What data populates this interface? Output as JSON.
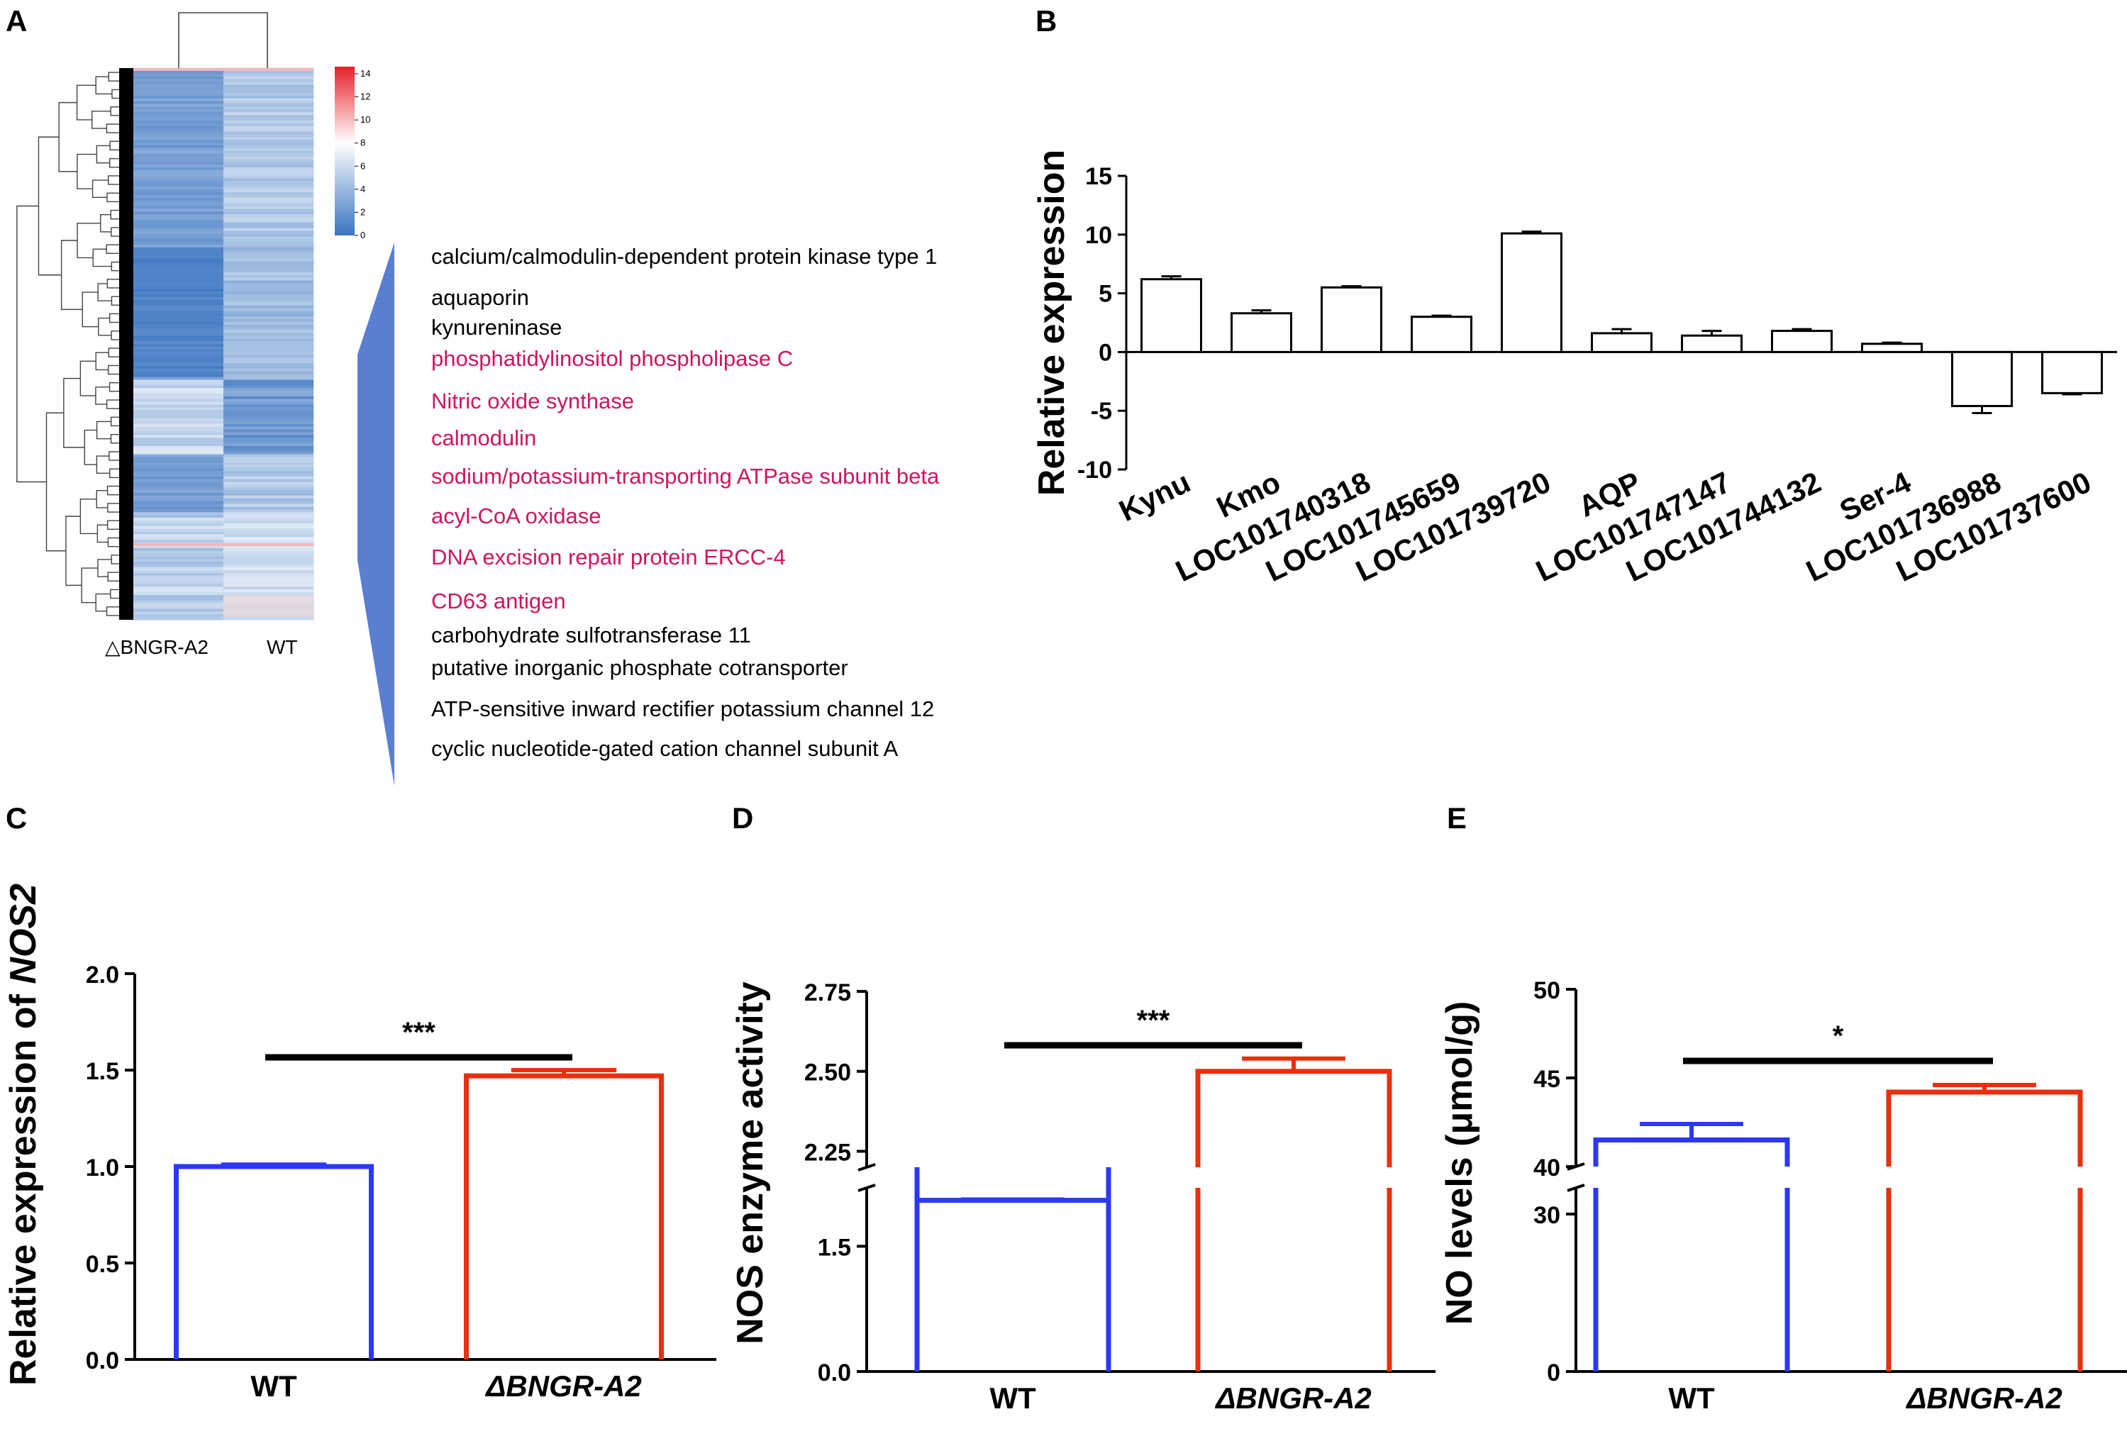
{
  "panel_letters": [
    "A",
    "B",
    "C",
    "D",
    "E"
  ],
  "heatmap": {
    "column_labels": [
      "△BNGR-A2",
      "WT"
    ],
    "colorbar_ticks": [
      "14",
      "12",
      "10",
      "8",
      "6",
      "4",
      "2",
      "0"
    ],
    "colors": {
      "low": "#3a74c0",
      "mid": "#ffffff",
      "high": "#e8202a"
    },
    "genes": [
      {
        "label": "calcium/calmodulin-dependent protein kinase type 1",
        "color": "#000000"
      },
      {
        "label": "aquaporin",
        "color": "#000000"
      },
      {
        "label": "kynureninase",
        "color": "#000000"
      },
      {
        "label": "phosphatidylinositol phospholipase C",
        "color": "#d0145f"
      },
      {
        "label": "Nitric oxide synthase",
        "color": "#d0145f"
      },
      {
        "label": "calmodulin",
        "color": "#d0145f"
      },
      {
        "label": "sodium/potassium-transporting ATPase subunit beta",
        "color": "#d0145f"
      },
      {
        "label": "acyl-CoA oxidase",
        "color": "#d0145f"
      },
      {
        "label": "DNA excision repair protein ERCC-4",
        "color": "#d0145f"
      },
      {
        "label": "CD63 antigen",
        "color": "#d0145f"
      },
      {
        "label": "carbohydrate sulfotransferase 11",
        "color": "#000000"
      },
      {
        "label": "putative inorganic phosphate cotransporter",
        "color": "#000000"
      },
      {
        "label": "ATP-sensitive inward rectifier potassium channel 12",
        "color": "#000000"
      },
      {
        "label": "cyclic nucleotide-gated cation channel subunit A",
        "color": "#000000"
      }
    ]
  },
  "chart_data": [
    {
      "panel": "B",
      "type": "bar",
      "title": "",
      "xlabel": "",
      "ylabel": "Relative expression",
      "ylim": [
        -10,
        15
      ],
      "yticks": [
        15,
        10,
        5,
        0,
        -5,
        -10
      ],
      "categories": [
        "Kynu",
        "Kmo",
        "LOC101740318",
        "LOC101745659",
        "LOC101739720",
        "AQP",
        "LOC101747147",
        "LOC101744132",
        "Ser-4",
        "LOC101736988",
        "LOC101737600"
      ],
      "values": [
        6.2,
        3.3,
        5.5,
        3.0,
        10.1,
        1.6,
        1.4,
        1.8,
        0.7,
        -4.6,
        -3.5
      ],
      "errors": [
        0.25,
        0.25,
        0.1,
        0.1,
        0.15,
        0.35,
        0.4,
        0.15,
        0.1,
        0.6,
        0.1
      ]
    },
    {
      "panel": "C",
      "type": "bar",
      "title": "",
      "xlabel": "",
      "ylabel_parts": [
        "Relative expression of ",
        "NOS2"
      ],
      "ylim": [
        0,
        2.0
      ],
      "yticks": [
        "0.0",
        "0.5",
        "1.0",
        "1.5",
        "2.0"
      ],
      "categories": [
        "WT",
        "ΔBNGR-A2"
      ],
      "values": [
        1.0,
        1.47
      ],
      "errors": [
        0.01,
        0.03
      ],
      "bar_colors": [
        "#2b38f5",
        "#e8300e"
      ],
      "significance": "***"
    },
    {
      "panel": "D",
      "type": "bar",
      "title": "",
      "xlabel": "",
      "ylabel": "NOS enzyme activity",
      "broken_axis": true,
      "ylim_lower": [
        0,
        2.2
      ],
      "ylim_upper": [
        2.2,
        2.75
      ],
      "yticks_lower": [
        "0.0",
        "1.5"
      ],
      "yticks_upper": [
        "2.25",
        "2.50",
        "2.75"
      ],
      "categories": [
        "WT",
        "ΔBNGR-A2"
      ],
      "values": [
        2.05,
        2.5
      ],
      "errors": [
        0.01,
        0.04
      ],
      "bar_colors": [
        "#2b38f5",
        "#e8300e"
      ],
      "significance": "***"
    },
    {
      "panel": "E",
      "type": "bar",
      "title": "",
      "xlabel": "",
      "ylabel": "NO levels (μmol/g)",
      "broken_axis": true,
      "ylim_lower": [
        0,
        35
      ],
      "ylim_upper": [
        40,
        50
      ],
      "yticks_lower": [
        "0",
        "30"
      ],
      "yticks_upper": [
        "40",
        "45",
        "50"
      ],
      "categories": [
        "WT",
        "ΔBNGR-A2"
      ],
      "values": [
        41.5,
        44.2
      ],
      "errors": [
        0.9,
        0.4
      ],
      "bar_colors": [
        "#2b38f5",
        "#e8300e"
      ],
      "significance": "*"
    }
  ]
}
